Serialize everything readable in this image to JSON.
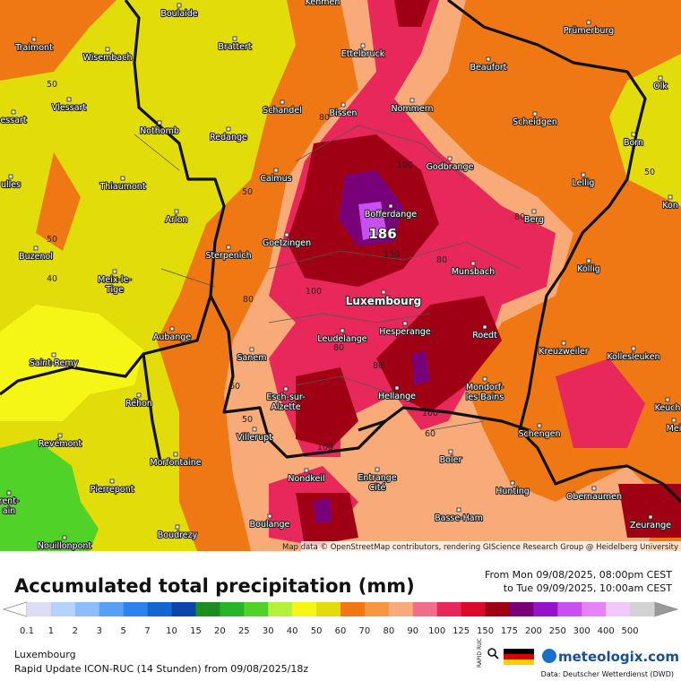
{
  "map": {
    "places": [
      {
        "lines": [
          "Kehmen"
        ]
      },
      {
        "lines": [
          "Boulaide"
        ]
      },
      {
        "lines": [
          "Brattert"
        ]
      },
      {
        "lines": [
          "Traimont"
        ]
      },
      {
        "lines": [
          "Wisembach"
        ]
      },
      {
        "lines": [
          "Ettelbruck"
        ]
      },
      {
        "lines": [
          "Beaufort"
        ]
      },
      {
        "lines": [
          "Prümerburg"
        ]
      },
      {
        "lines": [
          "Olk"
        ]
      },
      {
        "lines": [
          "Schandel"
        ]
      },
      {
        "lines": [
          "Bissen"
        ]
      },
      {
        "lines": [
          "Nommern"
        ]
      },
      {
        "lines": [
          "Vlessart"
        ]
      },
      {
        "lines": [
          "essart"
        ]
      },
      {
        "lines": [
          "Nothomb"
        ]
      },
      {
        "lines": [
          "Redange"
        ]
      },
      {
        "lines": [
          "Scheidgen"
        ]
      },
      {
        "lines": [
          "Born"
        ]
      },
      {
        "lines": [
          "Godbrange"
        ]
      },
      {
        "lines": [
          "Calmus"
        ]
      },
      {
        "lines": [
          "Lellig"
        ]
      },
      {
        "lines": [
          "Thiaumont"
        ]
      },
      {
        "lines": [
          "ulles"
        ]
      },
      {
        "lines": [
          "Bofferdange"
        ]
      },
      {
        "lines": [
          "Berg"
        ]
      },
      {
        "lines": [
          "Kon"
        ]
      },
      {
        "lines": [
          "Arlon"
        ]
      },
      {
        "lines": [
          "Goetzingen"
        ]
      },
      {
        "lines": [
          "Sterpenich"
        ]
      },
      {
        "lines": [
          "Buzenol"
        ]
      },
      {
        "lines": [
          "Munsbach"
        ]
      },
      {
        "lines": [
          "Köllig"
        ]
      },
      {
        "lines": [
          "Meix-le-",
          "Tige"
        ]
      },
      {
        "lines": [
          "Luxembourg"
        ]
      },
      {
        "lines": [
          "Hesperange"
        ]
      },
      {
        "lines": [
          "Roedt"
        ]
      },
      {
        "lines": [
          "Leudelange"
        ]
      },
      {
        "lines": [
          "Aubange"
        ]
      },
      {
        "lines": [
          "Saint-Remy"
        ]
      },
      {
        "lines": [
          "Sanem"
        ]
      },
      {
        "lines": [
          "Kreuzweiler"
        ]
      },
      {
        "lines": [
          "Kollesleuken"
        ]
      },
      {
        "lines": [
          "Esch-sur-",
          "Alzette"
        ]
      },
      {
        "lines": [
          "Hellange"
        ]
      },
      {
        "lines": [
          "Mondorf-",
          "les-Bains"
        ]
      },
      {
        "lines": [
          "Réhon"
        ]
      },
      {
        "lines": [
          "Keuch"
        ]
      },
      {
        "lines": [
          "Mei"
        ]
      },
      {
        "lines": [
          "Villerupt"
        ]
      },
      {
        "lines": [
          "Schengen"
        ]
      },
      {
        "lines": [
          "Revémont"
        ]
      },
      {
        "lines": [
          "Morfontaine"
        ]
      },
      {
        "lines": [
          "Boler"
        ]
      },
      {
        "lines": [
          "Nondkeil"
        ]
      },
      {
        "lines": [
          "Entrange",
          "Cité"
        ]
      },
      {
        "lines": [
          "Pierrepont"
        ]
      },
      {
        "lines": [
          "Hunting"
        ]
      },
      {
        "lines": [
          "Obernaumen"
        ]
      },
      {
        "lines": [
          "rent-",
          "ain"
        ]
      },
      {
        "lines": [
          "Basse-Ham"
        ]
      },
      {
        "lines": [
          "Boulange"
        ]
      },
      {
        "lines": [
          "Zeurange"
        ]
      },
      {
        "lines": [
          "Boudrezy"
        ]
      },
      {
        "lines": [
          "Nouillonpont"
        ]
      }
    ],
    "contour_labels": [
      50,
      50,
      40,
      50,
      80,
      100,
      80,
      80,
      100,
      150,
      80,
      80,
      80,
      60,
      50,
      100,
      60,
      100,
      50
    ],
    "peak": 186,
    "attribution": "Map data © OpenStreetMap contributors, rendering GIScience Research Group @ Heidelberg University"
  },
  "legend": {
    "title": "Accumulated total precipitation (mm)",
    "period_from": "From Mon 09/08/2025, 08:00pm CEST",
    "period_to": "to Tue 09/09/2025, 10:00am CEST",
    "levels": [
      0.1,
      1,
      2,
      3,
      5,
      7,
      10,
      15,
      20,
      25,
      30,
      40,
      50,
      60,
      70,
      80,
      90,
      100,
      125,
      150,
      175,
      200,
      250,
      300,
      400,
      500
    ],
    "colors": [
      "#dcdcf2",
      "#b4d2fa",
      "#8cbcfa",
      "#5a9ff6",
      "#2d82f0",
      "#1464d2",
      "#0a46aa",
      "#1e8c1e",
      "#28b428",
      "#50d228",
      "#b4f03c",
      "#f5f516",
      "#e1dc0a",
      "#f07814",
      "#f59640",
      "#f8aa78",
      "#f06e8c",
      "#e8285a",
      "#dc0a28",
      "#a00014",
      "#780078",
      "#9614c8",
      "#c850f0",
      "#e682fa",
      "#f0c8fa",
      "#d2d2d2"
    ]
  },
  "footer": {
    "region": "Luxembourg",
    "model": "Rapid Update ICON-RUC (14 Stunden)  from  09/08/2025/18z",
    "badge": "RAPID RUC",
    "brand": "meteologix.com",
    "source": "Data: Deutscher Wetterdienst (DWD)"
  }
}
